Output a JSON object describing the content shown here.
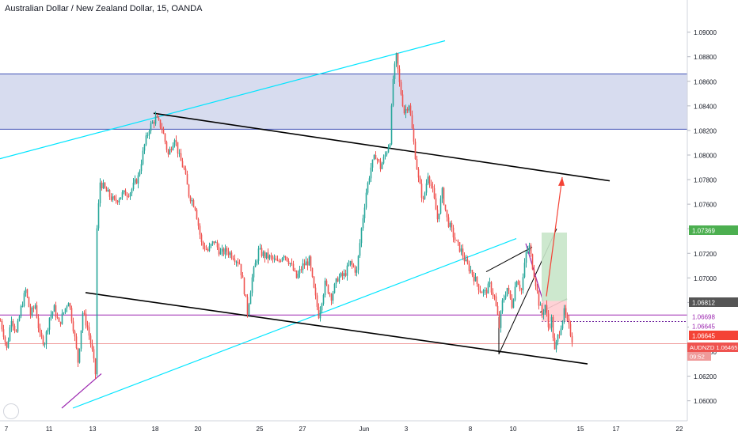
{
  "header": {
    "title": "Australian Dollar / New Zealand Dollar, 15, OANDA"
  },
  "symbol_tag": "AUDNZD",
  "countdown": "09:52",
  "colors": {
    "up": "#26a69a",
    "down": "#ef5350",
    "zone_fill": "#d7dcef",
    "zone_border": "#3f51b5",
    "channel_cyan": "#00e5ff",
    "trend_black": "#000000",
    "purple": "#9c27b0",
    "target_green": "#4caf50",
    "stop_red": "#f44336"
  },
  "chart_data": {
    "type": "candlestick",
    "title": "Australian Dollar / New Zealand Dollar, 15, OANDA",
    "x_tick_labels": [
      "7",
      "11",
      "13",
      "18",
      "20",
      "25",
      "27",
      "Jun",
      "3",
      "8",
      "10",
      "15",
      "17",
      "22"
    ],
    "y_tick_labels": [
      "1.06000",
      "1.06200",
      "1.06400",
      "1.06600",
      "1.06800",
      "1.07000",
      "1.07200",
      "1.07400",
      "1.07600",
      "1.07800",
      "1.08000",
      "1.08200",
      "1.08400",
      "1.08600",
      "1.08800",
      "1.09000"
    ],
    "ylim": [
      1.0594,
      1.0912
    ],
    "price_labels": [
      {
        "value": "1.07369",
        "color": "#4caf50"
      },
      {
        "value": "1.06812",
        "color": "#555555"
      },
      {
        "value": "1.06698",
        "color": "#9c27b0"
      },
      {
        "value": "1.06645",
        "color": "#9c27b0"
      },
      {
        "value": "1.06645",
        "color": "#f44336"
      },
      {
        "value": "1.06465",
        "color": "#ef5350"
      }
    ],
    "price_path": [
      [
        0,
        1.0665
      ],
      [
        4,
        1.0655
      ],
      [
        8,
        1.0642
      ],
      [
        14,
        1.0668
      ],
      [
        20,
        1.0655
      ],
      [
        26,
        1.0675
      ],
      [
        32,
        1.069
      ],
      [
        38,
        1.067
      ],
      [
        44,
        1.0678
      ],
      [
        50,
        1.0652
      ],
      [
        56,
        1.0648
      ],
      [
        62,
        1.0668
      ],
      [
        68,
        1.0675
      ],
      [
        74,
        1.0662
      ],
      [
        80,
        1.0672
      ],
      [
        86,
        1.0682
      ],
      [
        92,
        1.066
      ],
      [
        98,
        1.0632
      ],
      [
        104,
        1.0672
      ],
      [
        110,
        1.066
      ],
      [
        116,
        1.064
      ],
      [
        120,
        1.0622
      ],
      [
        122,
        1.074
      ],
      [
        126,
        1.0778
      ],
      [
        134,
        1.077
      ],
      [
        144,
        1.0762
      ],
      [
        154,
        1.0768
      ],
      [
        164,
        1.077
      ],
      [
        174,
        1.0782
      ],
      [
        182,
        1.0808
      ],
      [
        188,
        1.0822
      ],
      [
        196,
        1.083
      ],
      [
        204,
        1.0822
      ],
      [
        212,
        1.08
      ],
      [
        220,
        1.0815
      ],
      [
        226,
        1.0798
      ],
      [
        232,
        1.0788
      ],
      [
        238,
        1.0768
      ],
      [
        246,
        1.0758
      ],
      [
        254,
        1.0728
      ],
      [
        262,
        1.0722
      ],
      [
        270,
        1.073
      ],
      [
        278,
        1.072
      ],
      [
        286,
        1.0722
      ],
      [
        294,
        1.0718
      ],
      [
        302,
        1.0712
      ],
      [
        308,
        1.069
      ],
      [
        312,
        1.0672
      ],
      [
        318,
        1.07
      ],
      [
        326,
        1.0722
      ],
      [
        334,
        1.0718
      ],
      [
        342,
        1.0716
      ],
      [
        350,
        1.0712
      ],
      [
        358,
        1.072
      ],
      [
        366,
        1.0712
      ],
      [
        374,
        1.07
      ],
      [
        382,
        1.071
      ],
      [
        390,
        1.0714
      ],
      [
        396,
        1.069
      ],
      [
        402,
        1.067
      ],
      [
        410,
        1.0695
      ],
      [
        418,
        1.0685
      ],
      [
        426,
        1.07
      ],
      [
        434,
        1.0702
      ],
      [
        442,
        1.0712
      ],
      [
        450,
        1.0705
      ],
      [
        456,
        1.074
      ],
      [
        462,
        1.077
      ],
      [
        468,
        1.079
      ],
      [
        474,
        1.08
      ],
      [
        480,
        1.079
      ],
      [
        486,
        1.08
      ],
      [
        492,
        1.0812
      ],
      [
        496,
        1.0862
      ],
      [
        500,
        1.088
      ],
      [
        504,
        1.0858
      ],
      [
        510,
        1.0835
      ],
      [
        516,
        1.0842
      ],
      [
        522,
        1.081
      ],
      [
        528,
        1.078
      ],
      [
        534,
        1.0762
      ],
      [
        540,
        1.0785
      ],
      [
        546,
        1.077
      ],
      [
        552,
        1.0748
      ],
      [
        558,
        1.077
      ],
      [
        564,
        1.0748
      ],
      [
        570,
        1.0738
      ],
      [
        576,
        1.0728
      ],
      [
        582,
        1.0722
      ],
      [
        588,
        1.0712
      ],
      [
        594,
        1.0706
      ],
      [
        600,
        1.0698
      ],
      [
        606,
        1.069
      ],
      [
        612,
        1.0688
      ],
      [
        618,
        1.0694
      ],
      [
        624,
        1.0684
      ],
      [
        630,
        1.066
      ],
      [
        634,
        1.068
      ],
      [
        640,
        1.0692
      ],
      [
        646,
        1.0678
      ],
      [
        652,
        1.07
      ],
      [
        658,
        1.069
      ],
      [
        664,
        1.072
      ],
      [
        668,
        1.0725
      ],
      [
        672,
        1.071
      ],
      [
        676,
        1.0696
      ],
      [
        680,
        1.068
      ],
      [
        684,
        1.067
      ],
      [
        688,
        1.0678
      ],
      [
        692,
        1.066
      ],
      [
        696,
        1.0666
      ],
      [
        700,
        1.064
      ],
      [
        704,
        1.0652
      ],
      [
        708,
        1.0662
      ],
      [
        712,
        1.0672
      ],
      [
        716,
        1.0664
      ],
      [
        720,
        1.0655
      ],
      [
        724,
        1.0645
      ]
    ]
  }
}
